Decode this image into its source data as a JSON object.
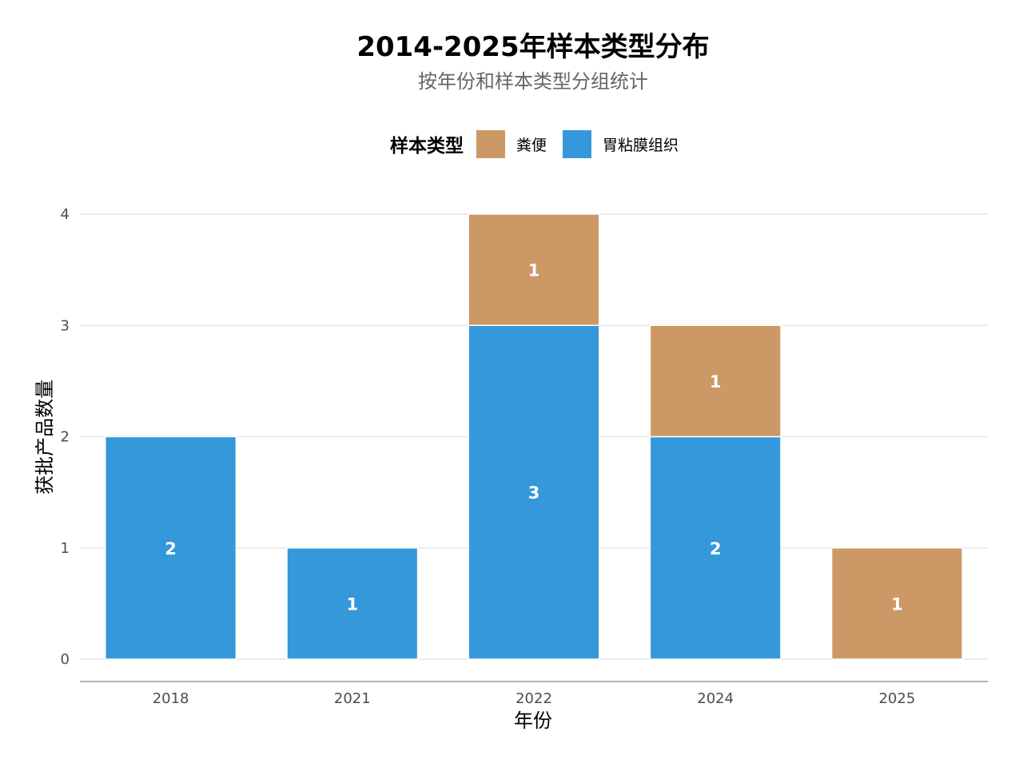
{
  "chart_data": {
    "type": "bar",
    "stacked": true,
    "title": "2014-2025年样本类型分布",
    "subtitle": "按年份和样本类型分组统计",
    "xlabel": "年份",
    "ylabel": "获批产品数量",
    "categories": [
      "2018",
      "2021",
      "2022",
      "2024",
      "2025"
    ],
    "series": [
      {
        "name": "胃粘膜组织",
        "color": "#3498DB",
        "values": [
          2,
          1,
          3,
          2,
          0
        ]
      },
      {
        "name": "粪便",
        "color": "#CC9966",
        "values": [
          0,
          0,
          1,
          1,
          1
        ]
      }
    ],
    "legend": {
      "title": "样本类型",
      "position": "top",
      "order": [
        "粪便",
        "胃粘膜组织"
      ]
    },
    "ylim": [
      0,
      4
    ],
    "yticks": [
      0,
      1,
      2,
      3,
      4
    ],
    "grid": true,
    "data_labels": true
  }
}
